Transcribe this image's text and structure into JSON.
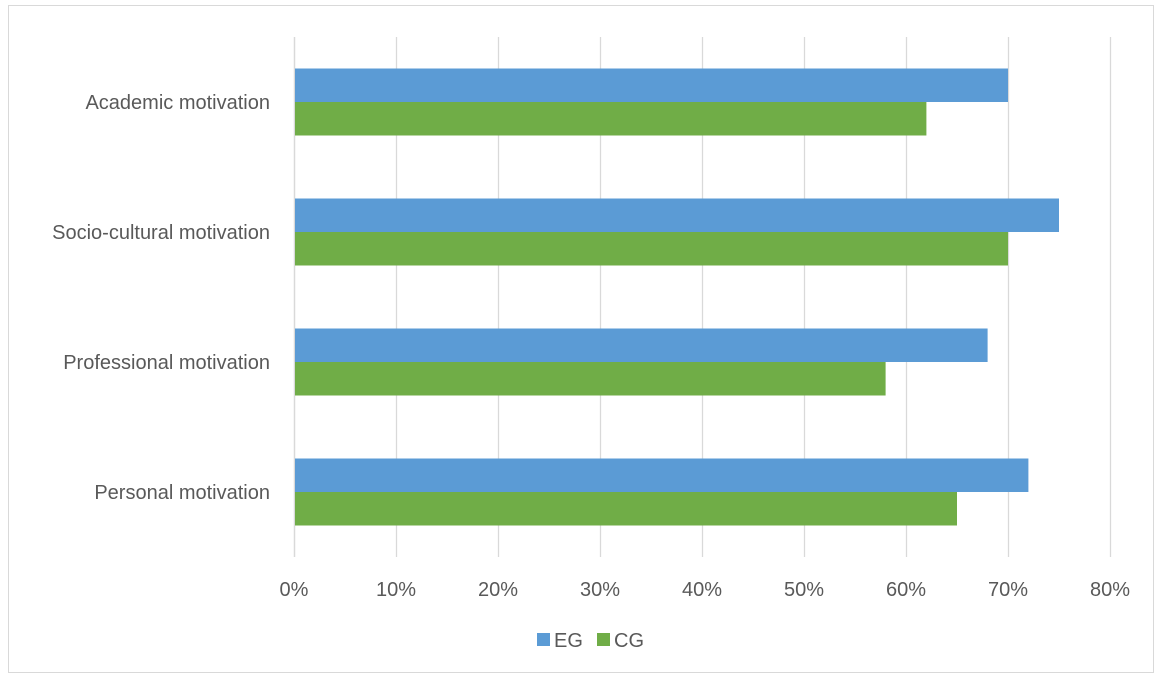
{
  "chart_data": {
    "type": "bar",
    "orientation": "horizontal",
    "title": "",
    "xlabel": "",
    "ylabel": "",
    "categories": [
      "Academic motivation",
      "Socio-cultural motivation",
      "Professional motivation",
      "Personal motivation"
    ],
    "series": [
      {
        "name": "EG",
        "color": "#5b9bd5",
        "values": [
          70,
          75,
          68,
          72
        ]
      },
      {
        "name": "CG",
        "color": "#70ad47",
        "values": [
          62,
          70,
          58,
          65
        ]
      }
    ],
    "xlim": [
      0,
      80
    ],
    "xticks": [
      0,
      10,
      20,
      30,
      40,
      50,
      60,
      70,
      80
    ],
    "xtick_labels": [
      "0%",
      "10%",
      "20%",
      "30%",
      "40%",
      "50%",
      "60%",
      "70%",
      "80%"
    ],
    "grid": "vertical",
    "legend": "bottom"
  }
}
